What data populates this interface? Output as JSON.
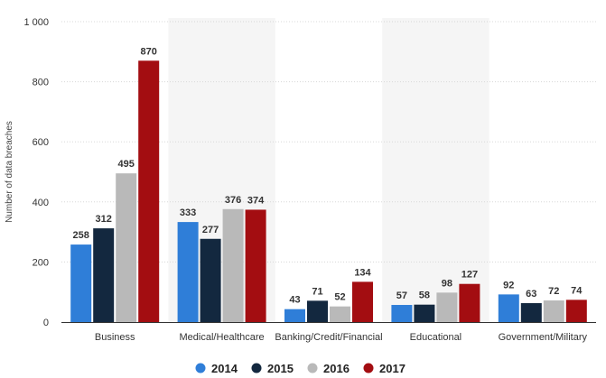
{
  "chart_data": {
    "type": "bar",
    "title": "",
    "xlabel": "",
    "ylabel": "Number of data breaches",
    "ylim": [
      0,
      1000
    ],
    "yticks": [
      0,
      200,
      400,
      600,
      800,
      1000
    ],
    "ytick_labels": [
      "0",
      "200",
      "400",
      "600",
      "800",
      "1 000"
    ],
    "grid": true,
    "legend_position": "bottom",
    "categories": [
      "Business",
      "Medical/Healthcare",
      "Banking/Credit/Financial",
      "Educational",
      "Government/Military"
    ],
    "series": [
      {
        "name": "2014",
        "color": "#2f7ed8",
        "values": [
          258,
          333,
          43,
          57,
          92
        ]
      },
      {
        "name": "2015",
        "color": "#13283f",
        "values": [
          312,
          277,
          71,
          58,
          63
        ]
      },
      {
        "name": "2016",
        "color": "#b9b9b9",
        "values": [
          495,
          376,
          52,
          98,
          72
        ]
      },
      {
        "name": "2017",
        "color": "#a30d11",
        "values": [
          870,
          374,
          134,
          127,
          74
        ]
      }
    ],
    "alternate_band_color": "#f5f5f5"
  }
}
